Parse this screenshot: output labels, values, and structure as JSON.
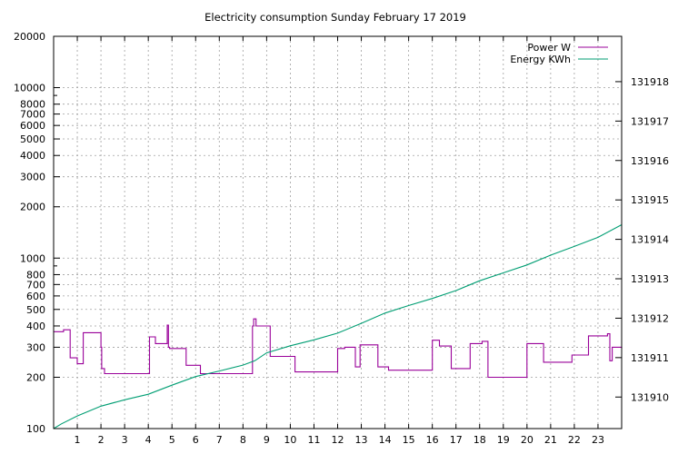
{
  "chart_data": {
    "type": "line",
    "title": "Electricity consumption Sunday February 17 2019",
    "xlabel": "",
    "ylabel": "",
    "y2label": "",
    "xlim": [
      0,
      24
    ],
    "ylim": [
      100,
      20000
    ],
    "yscale": "log",
    "y2lim": [
      131909.2,
      131919.15
    ],
    "grid": true,
    "legend_position": "top-right",
    "x_ticks": [
      1,
      2,
      3,
      4,
      5,
      6,
      7,
      8,
      9,
      10,
      11,
      12,
      13,
      14,
      15,
      16,
      17,
      18,
      19,
      20,
      21,
      22,
      23
    ],
    "y_ticks": [
      100,
      200,
      300,
      400,
      500,
      600,
      700,
      800,
      1000,
      2000,
      3000,
      4000,
      5000,
      6000,
      7000,
      8000,
      10000,
      20000
    ],
    "y_tick_labels": [
      "100",
      "200",
      "300",
      "400",
      "500",
      "600",
      "700",
      "800",
      "1000",
      "2000",
      "3000",
      "4000",
      "5000",
      "6000",
      "7000",
      "8000",
      "10000",
      "20000"
    ],
    "y2_ticks": [
      131910,
      131911,
      131912,
      131913,
      131914,
      131915,
      131916,
      131917,
      131918
    ],
    "y2_tick_labels": [
      "131910",
      "131911",
      "131912",
      "131913",
      "131914",
      "131915",
      "131916",
      "131917",
      "131918"
    ],
    "series": [
      {
        "name": "Power W",
        "axis": "y1",
        "color": "#990099",
        "step": true,
        "x": [
          0.0,
          0.42,
          0.7,
          0.75,
          1.0,
          1.25,
          1.3,
          2.0,
          2.03,
          2.15,
          4.05,
          4.3,
          4.8,
          4.85,
          4.9,
          5.6,
          6.2,
          8.4,
          8.45,
          8.55,
          9.15,
          10.2,
          12.0,
          12.3,
          12.75,
          12.95,
          13.0,
          13.7,
          14.15,
          16.0,
          16.3,
          16.8,
          17.6,
          18.1,
          18.35,
          20.0,
          20.7,
          21.9,
          22.6,
          23.4,
          23.5,
          23.6,
          24.0
        ],
        "values": [
          370,
          380,
          260,
          260,
          240,
          365,
          365,
          300,
          225,
          210,
          345,
          315,
          405,
          300,
          295,
          235,
          210,
          400,
          440,
          400,
          265,
          215,
          295,
          300,
          230,
          310,
          310,
          230,
          220,
          330,
          305,
          225,
          315,
          325,
          200,
          315,
          245,
          270,
          350,
          360,
          250,
          300,
          295
        ]
      },
      {
        "name": "Energy KWh",
        "axis": "y2",
        "color": "#009e73",
        "step": false,
        "x": [
          0.0,
          0.33,
          1.0,
          2.0,
          3.0,
          4.0,
          5.0,
          6.0,
          7.0,
          8.0,
          8.5,
          9.0,
          10.0,
          11.0,
          12.0,
          13.0,
          14.0,
          15.0,
          16.0,
          17.0,
          18.0,
          19.0,
          20.0,
          21.0,
          22.0,
          23.0,
          24.0
        ],
        "values": [
          131909.2,
          131909.32,
          131909.52,
          131909.77,
          131909.93,
          131910.07,
          131910.3,
          131910.52,
          131910.66,
          131910.81,
          131910.92,
          131911.12,
          131911.3,
          131911.45,
          131911.62,
          131911.87,
          131912.13,
          131912.32,
          131912.5,
          131912.7,
          131912.95,
          131913.15,
          131913.35,
          131913.6,
          131913.82,
          131914.05,
          131914.37
        ]
      }
    ]
  }
}
